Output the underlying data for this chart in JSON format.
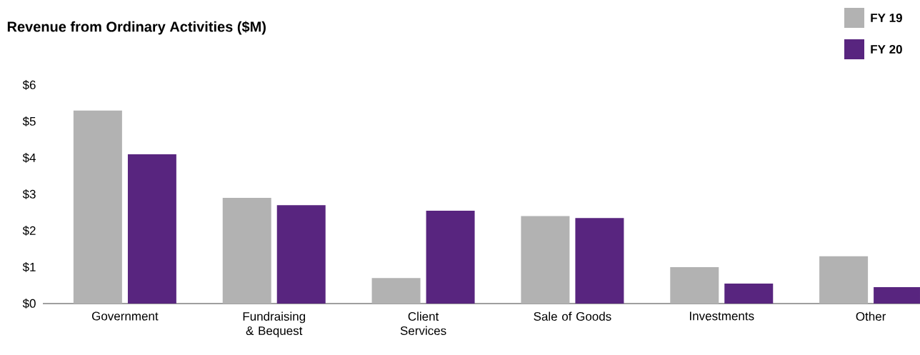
{
  "chart_data": {
    "type": "bar",
    "title": "Revenue from Ordinary Activities ($M)",
    "categories": [
      "Government",
      "Fundraising & Bequest",
      "Client Services",
      "Sale of Goods",
      "Investments",
      "Other"
    ],
    "series": [
      {
        "name": "FY 19",
        "color": "#b2b2b2",
        "values": [
          5.3,
          2.9,
          0.7,
          2.4,
          1.0,
          1.3
        ]
      },
      {
        "name": "FY 20",
        "color": "#58257f",
        "values": [
          4.1,
          2.7,
          2.55,
          2.35,
          0.55,
          0.45
        ]
      }
    ],
    "ylim": [
      0,
      6
    ],
    "yticks": [
      {
        "value": 0,
        "label": "$0"
      },
      {
        "value": 1,
        "label": "$1"
      },
      {
        "value": 2,
        "label": "$2"
      },
      {
        "value": 3,
        "label": "$3"
      },
      {
        "value": 4,
        "label": "$4"
      },
      {
        "value": 5,
        "label": "$5"
      },
      {
        "value": 6,
        "label": "$6"
      }
    ],
    "grid": false,
    "legend": "top right"
  }
}
